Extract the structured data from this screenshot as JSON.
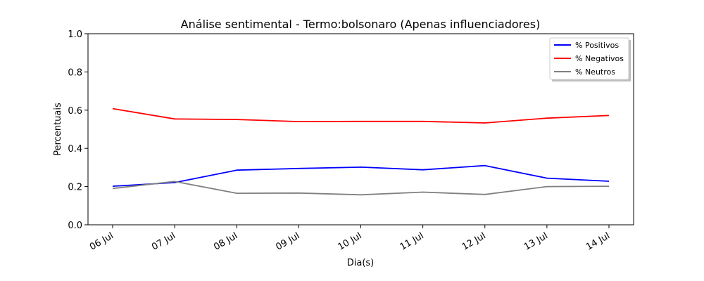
{
  "chart_data": {
    "type": "line",
    "title": "Análise sentimental - Termo:bolsonaro (Apenas influenciadores)",
    "xlabel": "Dia(s)",
    "ylabel": "Percentuais",
    "categories": [
      "06 Jul",
      "07 Jul",
      "08 Jul",
      "09 Jul",
      "10 Jul",
      "11 Jul",
      "12 Jul",
      "13 Jul",
      "14 Jul"
    ],
    "ylim": [
      0,
      1.0
    ],
    "yticks": [
      "0.0",
      "0.2",
      "0.4",
      "0.6",
      "0.8",
      "1.0"
    ],
    "grid": false,
    "legend_position": "top-right",
    "series": [
      {
        "name": "% Positivos",
        "color": "#0000ff",
        "values": [
          0.202,
          0.221,
          0.286,
          0.295,
          0.302,
          0.288,
          0.31,
          0.244,
          0.228
        ]
      },
      {
        "name": "% Negativos",
        "color": "#ff0000",
        "values": [
          0.608,
          0.554,
          0.551,
          0.54,
          0.541,
          0.541,
          0.533,
          0.558,
          0.572
        ]
      },
      {
        "name": "% Neutros",
        "color": "#808080",
        "values": [
          0.19,
          0.227,
          0.165,
          0.166,
          0.157,
          0.171,
          0.159,
          0.2,
          0.202
        ]
      }
    ]
  }
}
